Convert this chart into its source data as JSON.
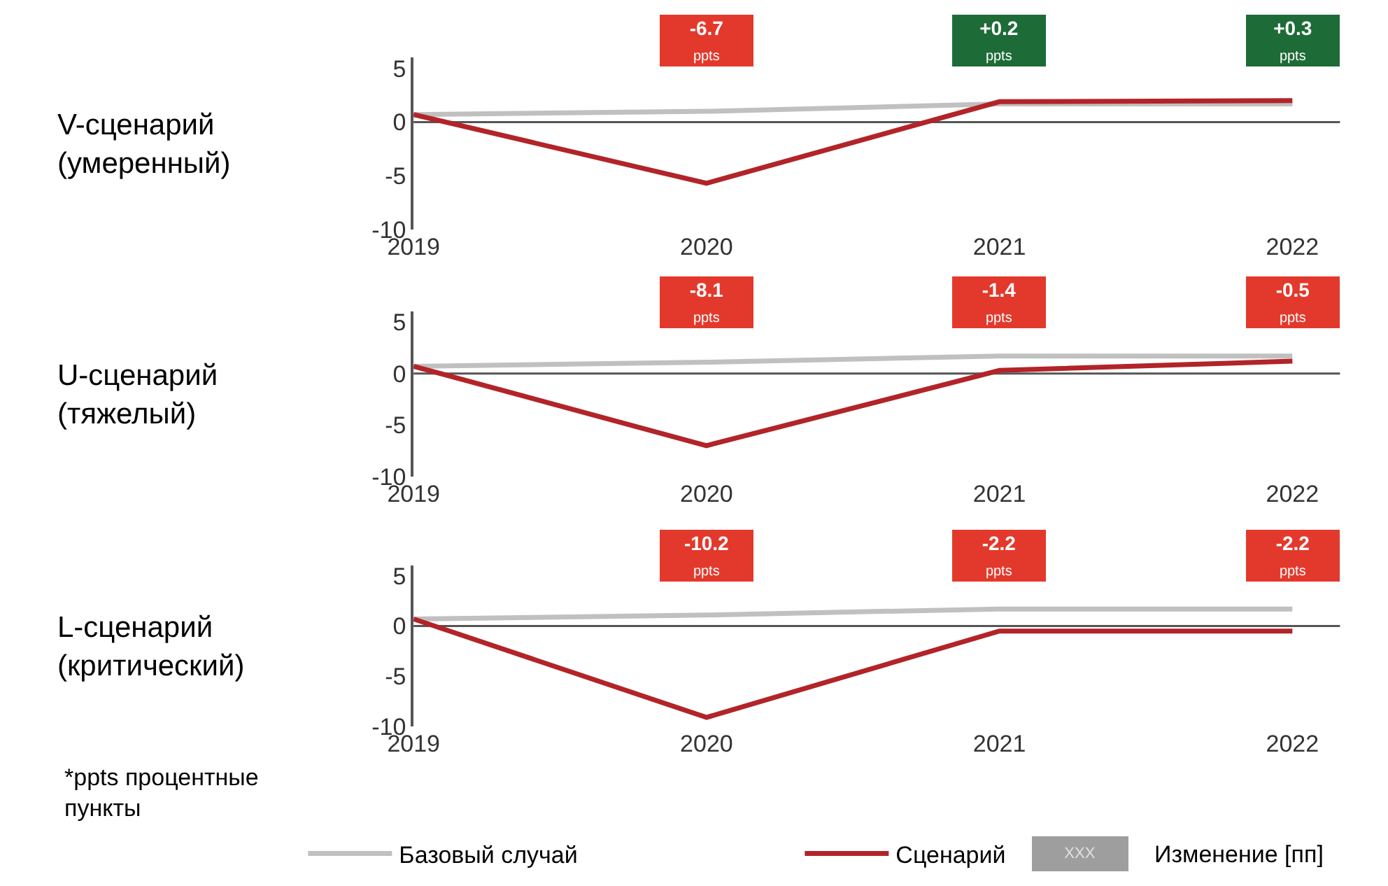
{
  "chart_data": [
    {
      "type": "line",
      "title": "V-сценарий\n(умеренный)",
      "categories": [
        "2019",
        "2020",
        "2021",
        "2022"
      ],
      "ylim": [
        -10,
        6
      ],
      "yticks": [
        -10,
        -5,
        0,
        5
      ],
      "legend": false,
      "marker": "none",
      "line_style": "solid",
      "ref_lines": [
        {
          "axis": "y",
          "value": 0,
          "color": "#555555"
        }
      ],
      "series": [
        {
          "color": "#c0c0c0",
          "values": [
            0.7,
            1.0,
            1.7,
            1.7
          ]
        },
        {
          "color": "#b22428",
          "values": [
            0.7,
            -5.7,
            1.9,
            2.0
          ]
        }
      ],
      "annotations": [
        "-6.7\nppts",
        "+0.2\nppts",
        "+0.3\nppts"
      ]
    },
    {
      "type": "line",
      "title": "U-сценарий\n(тяжелый)",
      "categories": [
        "2019",
        "2020",
        "2021",
        "2022"
      ],
      "ylim": [
        -10,
        6
      ],
      "yticks": [
        -10,
        -5,
        0,
        5
      ],
      "legend": false,
      "marker": "none",
      "line_style": "solid",
      "ref_lines": [
        {
          "axis": "y",
          "value": 0,
          "color": "#555555"
        }
      ],
      "series": [
        {
          "color": "#c0c0c0",
          "values": [
            0.7,
            1.1,
            1.7,
            1.7
          ]
        },
        {
          "color": "#b22428",
          "values": [
            0.7,
            -7.0,
            0.3,
            1.2
          ]
        }
      ],
      "annotations": [
        "-8.1\nppts",
        "-1.4\nppts",
        "-0.5\nppts"
      ]
    },
    {
      "type": "line",
      "title": "L-сценарий\n(критический)",
      "categories": [
        "2019",
        "2020",
        "2021",
        "2022"
      ],
      "ylim": [
        -10,
        6
      ],
      "yticks": [
        -10,
        -5,
        0,
        5
      ],
      "legend": "bottom",
      "marker": "none",
      "line_style": "solid",
      "ref_lines": [
        {
          "axis": "y",
          "value": 0,
          "color": "#555555"
        }
      ],
      "series": [
        {
          "name": "Базовый случай",
          "color": "#c0c0c0",
          "values": [
            0.7,
            1.1,
            1.7,
            1.7
          ]
        },
        {
          "name": "Сценарий",
          "color": "#b22428",
          "values": [
            0.7,
            -9.1,
            -0.5,
            -0.5
          ]
        }
      ],
      "annotations": [
        "-10.2\nppts",
        "-2.2\nppts",
        "-2.2\nppts",
        "*ppts процентные\nпункты",
        "XXX",
        "Изменение [пп]"
      ]
    }
  ]
}
